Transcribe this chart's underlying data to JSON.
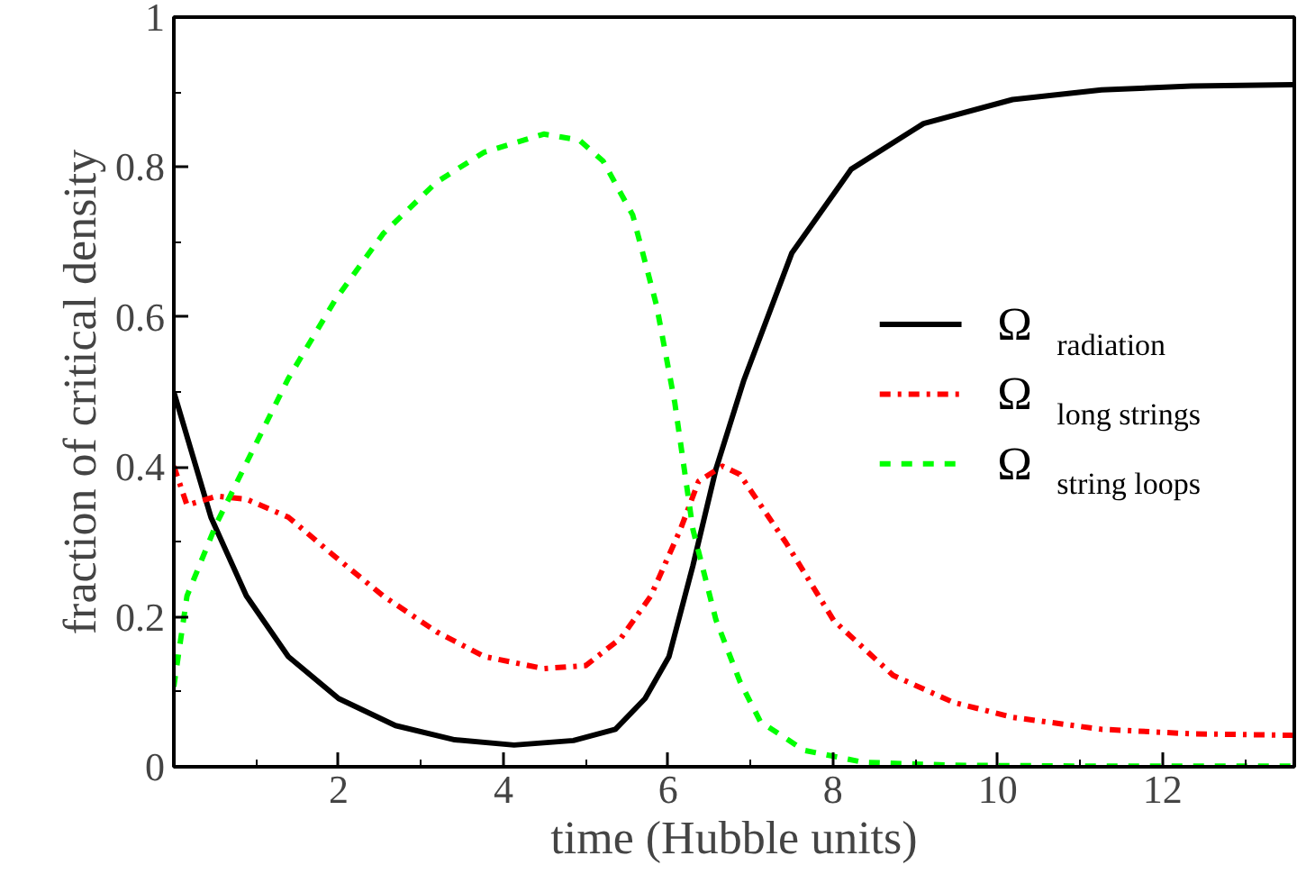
{
  "chart_data": {
    "type": "line",
    "xlabel": "time (Hubble units)",
    "ylabel": "fraction of critical density",
    "xlim": [
      0,
      13.6
    ],
    "ylim": [
      0,
      1
    ],
    "xticks": [
      {
        "value": 1,
        "label": null
      },
      2,
      {
        "value": 3,
        "label": null
      },
      4,
      {
        "value": 5,
        "label": null
      },
      6,
      {
        "value": 7,
        "label": null
      },
      8,
      {
        "value": 9,
        "label": null
      },
      10,
      {
        "value": 11,
        "label": null
      },
      12,
      {
        "value": 13,
        "label": null
      }
    ],
    "yticks": [
      0,
      {
        "value": 0.1,
        "label": null
      },
      0.2,
      {
        "value": 0.3,
        "label": null
      },
      0.4,
      {
        "value": 0.5,
        "label": null
      },
      0.6,
      {
        "value": 0.7,
        "label": null
      },
      0.8,
      {
        "value": 0.9,
        "label": null
      },
      1
    ],
    "grid": false,
    "legend": "right",
    "marker": "none",
    "series": [
      {
        "name": "Ω$_{radiation}$",
        "color": "#000000",
        "line_style": "solid",
        "x": [
          0,
          0.45,
          0.88,
          1.39,
          2.0,
          2.69,
          3.41,
          4.13,
          4.85,
          5.36,
          5.72,
          6.01,
          6.3,
          6.58,
          6.92,
          7.5,
          8.22,
          9.1,
          10.18,
          11.26,
          12.35,
          13.58
        ],
        "values": [
          0.5,
          0.333,
          0.228,
          0.147,
          0.091,
          0.055,
          0.036,
          0.029,
          0.035,
          0.05,
          0.091,
          0.147,
          0.268,
          0.397,
          0.516,
          0.685,
          0.797,
          0.858,
          0.89,
          0.903,
          0.908,
          0.91
        ]
      },
      {
        "name": "Ω$_{long strings}$",
        "color": "#ff0000",
        "line_style": "dashdot",
        "x": [
          0,
          0.16,
          0.52,
          0.88,
          1.39,
          1.96,
          2.54,
          3.19,
          3.77,
          4.49,
          5.0,
          5.43,
          5.79,
          6.15,
          6.37,
          6.66,
          6.87,
          7.43,
          8.01,
          8.73,
          9.46,
          10.18,
          11.26,
          12.35,
          13.58
        ],
        "values": [
          0.401,
          0.349,
          0.361,
          0.357,
          0.333,
          0.28,
          0.228,
          0.18,
          0.147,
          0.131,
          0.135,
          0.172,
          0.228,
          0.317,
          0.381,
          0.401,
          0.39,
          0.299,
          0.195,
          0.122,
          0.086,
          0.066,
          0.05,
          0.044,
          0.042
        ]
      },
      {
        "name": "Ω$_{string loops}$",
        "color": "#00ff00",
        "line_style": "dashed",
        "x": [
          0,
          0.16,
          0.52,
          0.88,
          1.39,
          1.96,
          2.54,
          3.19,
          3.77,
          4.49,
          4.92,
          5.21,
          5.57,
          5.86,
          6.08,
          6.3,
          6.58,
          6.87,
          7.12,
          7.65,
          8.37,
          9.46,
          11.0,
          13.58
        ],
        "values": [
          0.107,
          0.228,
          0.325,
          0.405,
          0.518,
          0.623,
          0.711,
          0.78,
          0.82,
          0.844,
          0.836,
          0.808,
          0.736,
          0.615,
          0.486,
          0.317,
          0.196,
          0.114,
          0.06,
          0.022,
          0.006,
          0.002,
          0.001,
          0.001
        ]
      }
    ]
  }
}
